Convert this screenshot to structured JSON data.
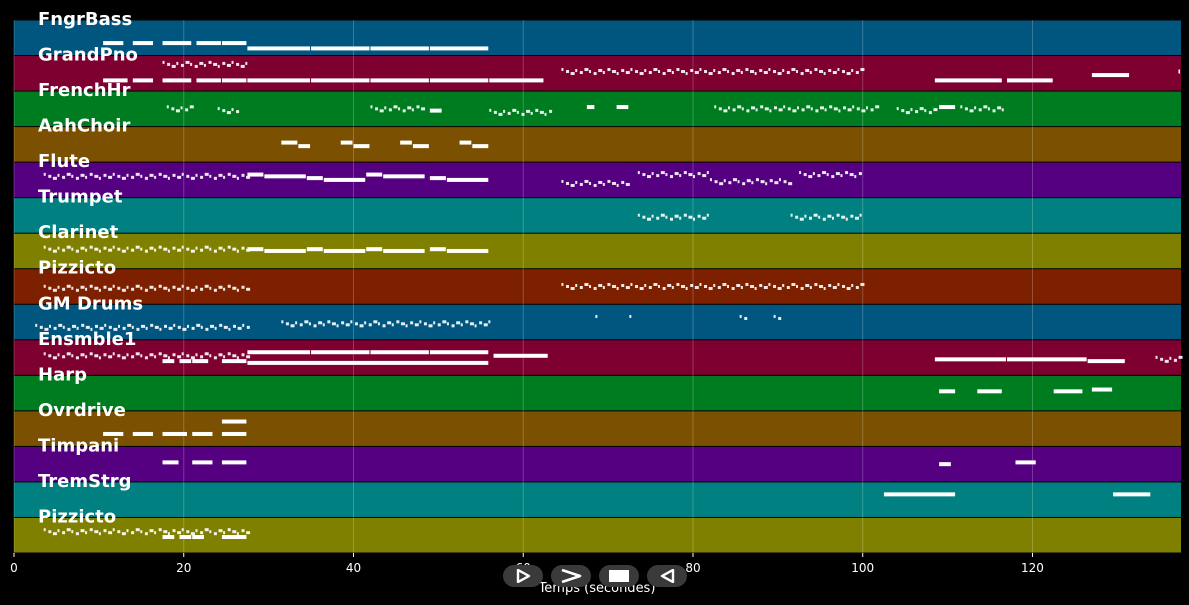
{
  "colors": {
    "background": "#000000",
    "notes": "#ffffff",
    "grid": "#ffffff",
    "track_palette": [
      "#015680",
      "#7d0030",
      "#007c20",
      "#7b5000",
      "#550080",
      "#008080",
      "#808000",
      "#7d2000"
    ]
  },
  "controls": {
    "play_icon": "play-icon",
    "forward_icon": "forward-icon",
    "stop_icon": "stop-icon",
    "back_icon": "back-icon"
  },
  "chart_data": {
    "type": "piano-roll",
    "title": "",
    "xlabel": "Temps (secondes)",
    "ylabel": "",
    "xlim": [
      0,
      137.5
    ],
    "xticks": [
      0,
      20,
      40,
      60,
      80,
      100,
      120
    ],
    "grid": true,
    "tracks": [
      {
        "name": "FngrBass",
        "color": "#015680",
        "notes": [
          {
            "start": 10.5,
            "end": 13.0,
            "pitch": 0.35
          },
          {
            "start": 14.0,
            "end": 16.5,
            "pitch": 0.35
          },
          {
            "start": 17.5,
            "end": 21.0,
            "pitch": 0.35
          },
          {
            "start": 21.5,
            "end": 24.5,
            "pitch": 0.35
          },
          {
            "start": 24.5,
            "end": 27.5,
            "pitch": 0.35
          },
          {
            "start": 27.5,
            "end": 35.0,
            "pitch": 0.2
          },
          {
            "start": 35.0,
            "end": 42.0,
            "pitch": 0.2
          },
          {
            "start": 42.0,
            "end": 49.0,
            "pitch": 0.2
          },
          {
            "start": 49.0,
            "end": 56.0,
            "pitch": 0.2
          }
        ]
      },
      {
        "name": "GrandPno",
        "color": "#7d0030",
        "notes": [
          {
            "start": 10.5,
            "end": 13.5,
            "pitch": 0.3
          },
          {
            "start": 14.0,
            "end": 16.5,
            "pitch": 0.3
          },
          {
            "start": 17.5,
            "end": 21.0,
            "pitch": 0.3
          },
          {
            "start": 21.5,
            "end": 24.5,
            "pitch": 0.3
          },
          {
            "start": 24.5,
            "end": 27.5,
            "pitch": 0.3
          },
          {
            "start": 27.5,
            "end": 35.0,
            "pitch": 0.3
          },
          {
            "start": 35.0,
            "end": 42.0,
            "pitch": 0.3
          },
          {
            "start": 42.0,
            "end": 49.0,
            "pitch": 0.3
          },
          {
            "start": 49.0,
            "end": 56.0,
            "pitch": 0.3
          },
          {
            "start": 56.0,
            "end": 62.5,
            "pitch": 0.3
          },
          {
            "start": 108.5,
            "end": 116.5,
            "pitch": 0.3
          },
          {
            "start": 117.0,
            "end": 122.5,
            "pitch": 0.3
          },
          {
            "start": 127.0,
            "end": 131.5,
            "pitch": 0.45
          },
          {
            "start": 137.2,
            "end": 137.5,
            "pitch": 0.55
          }
        ]
      },
      {
        "name": "FrenchHr",
        "color": "#007c20",
        "notes": [
          {
            "start": 49.0,
            "end": 50.5,
            "pitch": 0.45
          },
          {
            "start": 67.5,
            "end": 68.5,
            "pitch": 0.55
          },
          {
            "start": 71.0,
            "end": 72.5,
            "pitch": 0.55
          },
          {
            "start": 109.0,
            "end": 111.0,
            "pitch": 0.55
          }
        ]
      },
      {
        "name": "AahChoir",
        "color": "#7b5000",
        "notes": [
          {
            "start": 31.5,
            "end": 33.5,
            "pitch": 0.55
          },
          {
            "start": 33.5,
            "end": 35.0,
            "pitch": 0.45
          },
          {
            "start": 38.5,
            "end": 40.0,
            "pitch": 0.55
          },
          {
            "start": 40.0,
            "end": 42.0,
            "pitch": 0.45
          },
          {
            "start": 45.5,
            "end": 47.0,
            "pitch": 0.55
          },
          {
            "start": 47.0,
            "end": 49.0,
            "pitch": 0.45
          },
          {
            "start": 52.5,
            "end": 54.0,
            "pitch": 0.55
          },
          {
            "start": 54.0,
            "end": 56.0,
            "pitch": 0.45
          }
        ]
      },
      {
        "name": "Flute",
        "color": "#550080",
        "notes": [
          {
            "start": 27.5,
            "end": 29.5,
            "pitch": 0.65
          },
          {
            "start": 29.5,
            "end": 34.5,
            "pitch": 0.6
          },
          {
            "start": 34.5,
            "end": 36.5,
            "pitch": 0.55
          },
          {
            "start": 36.5,
            "end": 41.5,
            "pitch": 0.5
          },
          {
            "start": 41.5,
            "end": 43.5,
            "pitch": 0.65
          },
          {
            "start": 43.5,
            "end": 48.5,
            "pitch": 0.6
          },
          {
            "start": 49.0,
            "end": 51.0,
            "pitch": 0.55
          },
          {
            "start": 51.0,
            "end": 56.0,
            "pitch": 0.5
          }
        ]
      },
      {
        "name": "Trumpet",
        "color": "#008080",
        "notes": []
      },
      {
        "name": "Clarinet",
        "color": "#808000",
        "notes": [
          {
            "start": 27.5,
            "end": 29.5,
            "pitch": 0.55
          },
          {
            "start": 29.5,
            "end": 34.5,
            "pitch": 0.5
          },
          {
            "start": 34.5,
            "end": 36.5,
            "pitch": 0.55
          },
          {
            "start": 36.5,
            "end": 41.5,
            "pitch": 0.5
          },
          {
            "start": 41.5,
            "end": 43.5,
            "pitch": 0.55
          },
          {
            "start": 43.5,
            "end": 48.5,
            "pitch": 0.5
          },
          {
            "start": 49.0,
            "end": 51.0,
            "pitch": 0.55
          },
          {
            "start": 51.0,
            "end": 56.0,
            "pitch": 0.5
          }
        ]
      },
      {
        "name": "Pizzicto",
        "color": "#7d2000",
        "notes": []
      },
      {
        "name": "GM Drums",
        "color": "#015680",
        "notes": []
      },
      {
        "name": "Ensmble1",
        "color": "#7d0030",
        "notes": [
          {
            "start": 17.5,
            "end": 19.0,
            "pitch": 0.4
          },
          {
            "start": 19.5,
            "end": 21.0,
            "pitch": 0.4
          },
          {
            "start": 21.0,
            "end": 23.0,
            "pitch": 0.4
          },
          {
            "start": 24.5,
            "end": 27.5,
            "pitch": 0.4
          },
          {
            "start": 27.5,
            "end": 35.0,
            "pitch": 0.65
          },
          {
            "start": 35.0,
            "end": 42.0,
            "pitch": 0.65
          },
          {
            "start": 42.0,
            "end": 49.0,
            "pitch": 0.65
          },
          {
            "start": 49.0,
            "end": 56.0,
            "pitch": 0.65
          },
          {
            "start": 27.5,
            "end": 56.0,
            "pitch": 0.35
          },
          {
            "start": 56.5,
            "end": 63.0,
            "pitch": 0.55
          },
          {
            "start": 108.5,
            "end": 117.0,
            "pitch": 0.45
          },
          {
            "start": 117.0,
            "end": 126.5,
            "pitch": 0.45
          },
          {
            "start": 126.5,
            "end": 131.0,
            "pitch": 0.4
          }
        ]
      },
      {
        "name": "Harp",
        "color": "#007c20",
        "notes": [
          {
            "start": 109.0,
            "end": 111.0,
            "pitch": 0.55
          },
          {
            "start": 113.5,
            "end": 116.5,
            "pitch": 0.55
          },
          {
            "start": 122.5,
            "end": 126.0,
            "pitch": 0.55
          },
          {
            "start": 127.0,
            "end": 129.5,
            "pitch": 0.6
          }
        ]
      },
      {
        "name": "Ovrdrive",
        "color": "#7b5000",
        "notes": [
          {
            "start": 10.5,
            "end": 13.0,
            "pitch": 0.35
          },
          {
            "start": 14.0,
            "end": 16.5,
            "pitch": 0.35
          },
          {
            "start": 17.5,
            "end": 20.5,
            "pitch": 0.35
          },
          {
            "start": 21.0,
            "end": 23.5,
            "pitch": 0.35
          },
          {
            "start": 24.5,
            "end": 27.5,
            "pitch": 0.35
          },
          {
            "start": 24.5,
            "end": 27.5,
            "pitch": 0.7
          }
        ]
      },
      {
        "name": "Timpani",
        "color": "#550080",
        "notes": [
          {
            "start": 17.5,
            "end": 19.5,
            "pitch": 0.55
          },
          {
            "start": 21.0,
            "end": 23.5,
            "pitch": 0.55
          },
          {
            "start": 24.5,
            "end": 27.5,
            "pitch": 0.55
          },
          {
            "start": 109.0,
            "end": 110.5,
            "pitch": 0.5
          },
          {
            "start": 118.0,
            "end": 120.5,
            "pitch": 0.55
          }
        ]
      },
      {
        "name": "TremStrg",
        "color": "#008080",
        "notes": [
          {
            "start": 102.5,
            "end": 111.0,
            "pitch": 0.65
          },
          {
            "start": 129.5,
            "end": 134.0,
            "pitch": 0.65
          }
        ]
      },
      {
        "name": "Pizzicto",
        "color": "#808000",
        "notes": [
          {
            "start": 17.5,
            "end": 19.0,
            "pitch": 0.45
          },
          {
            "start": 19.5,
            "end": 21.0,
            "pitch": 0.45
          },
          {
            "start": 21.0,
            "end": 22.5,
            "pitch": 0.45
          },
          {
            "start": 24.5,
            "end": 27.5,
            "pitch": 0.45
          }
        ]
      }
    ],
    "note_clusters": [
      {
        "track": 0,
        "start": 0,
        "end": 0,
        "pitch": 0
      },
      {
        "track": 1,
        "start": 17.5,
        "end": 27.5,
        "pitch": 0.75
      },
      {
        "track": 1,
        "start": 64.5,
        "end": 100.0,
        "pitch": 0.55
      },
      {
        "track": 2,
        "start": 18.0,
        "end": 21.0,
        "pitch": 0.5
      },
      {
        "track": 2,
        "start": 24.0,
        "end": 26.5,
        "pitch": 0.45
      },
      {
        "track": 2,
        "start": 42.0,
        "end": 48.5,
        "pitch": 0.5
      },
      {
        "track": 2,
        "start": 56.0,
        "end": 63.5,
        "pitch": 0.4
      },
      {
        "track": 2,
        "start": 82.5,
        "end": 101.5,
        "pitch": 0.5
      },
      {
        "track": 2,
        "start": 104.0,
        "end": 108.5,
        "pitch": 0.45
      },
      {
        "track": 2,
        "start": 111.5,
        "end": 116.5,
        "pitch": 0.5
      },
      {
        "track": 4,
        "start": 3.5,
        "end": 27.5,
        "pitch": 0.6
      },
      {
        "track": 4,
        "start": 64.5,
        "end": 72.5,
        "pitch": 0.4
      },
      {
        "track": 4,
        "start": 73.5,
        "end": 82.0,
        "pitch": 0.65
      },
      {
        "track": 4,
        "start": 82.0,
        "end": 91.5,
        "pitch": 0.45
      },
      {
        "track": 4,
        "start": 92.5,
        "end": 100.0,
        "pitch": 0.65
      },
      {
        "track": 5,
        "start": 73.5,
        "end": 82.0,
        "pitch": 0.45
      },
      {
        "track": 5,
        "start": 91.5,
        "end": 100.0,
        "pitch": 0.45
      },
      {
        "track": 6,
        "start": 3.5,
        "end": 27.5,
        "pitch": 0.55
      },
      {
        "track": 7,
        "start": 3.5,
        "end": 27.5,
        "pitch": 0.45
      },
      {
        "track": 7,
        "start": 64.5,
        "end": 100.0,
        "pitch": 0.5
      },
      {
        "track": 8,
        "start": 2.5,
        "end": 27.5,
        "pitch": 0.35
      },
      {
        "track": 8,
        "start": 31.5,
        "end": 56.0,
        "pitch": 0.45
      },
      {
        "track": 8,
        "start": 68.5,
        "end": 69.0,
        "pitch": 0.6
      },
      {
        "track": 8,
        "start": 72.5,
        "end": 73.0,
        "pitch": 0.6
      },
      {
        "track": 8,
        "start": 85.5,
        "end": 86.5,
        "pitch": 0.6
      },
      {
        "track": 8,
        "start": 89.5,
        "end": 90.5,
        "pitch": 0.6
      },
      {
        "track": 9,
        "start": 3.5,
        "end": 27.5,
        "pitch": 0.55
      },
      {
        "track": 9,
        "start": 134.5,
        "end": 137.5,
        "pitch": 0.45
      },
      {
        "track": 14,
        "start": 3.5,
        "end": 27.5,
        "pitch": 0.6
      }
    ]
  }
}
